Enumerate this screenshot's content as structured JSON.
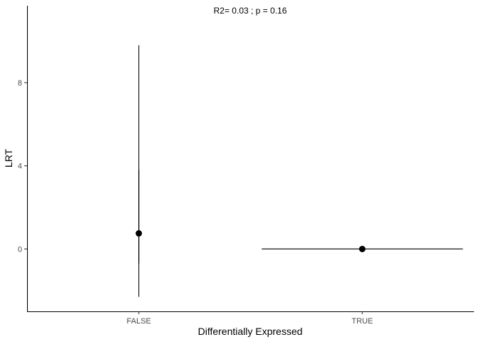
{
  "chart_data": {
    "type": "scatter",
    "xlabel": "Differentially Expressed",
    "ylabel": "LRT",
    "annotation": "R2= 0.03 ; p = 0.16",
    "categories": [
      "FALSE",
      "TRUE"
    ],
    "ylim": [
      -3.0,
      11.7
    ],
    "yticks": [
      0,
      4,
      8
    ],
    "grid": false,
    "points": [
      {
        "category": "FALSE",
        "y": 0.75
      },
      {
        "category": "TRUE",
        "y": 0.0
      }
    ],
    "vertical_ranges": [
      {
        "category": "FALSE",
        "ymin": -2.3,
        "ymax": 9.8
      },
      {
        "category": "FALSE",
        "ymin": -0.7,
        "ymax": 3.8
      }
    ],
    "horizontal_ranges": [
      {
        "category": "TRUE",
        "y": 0.0,
        "xmin_offset": -0.45,
        "xmax_offset": 0.45
      }
    ],
    "colors": {
      "points": "#000000",
      "lines": "#000000",
      "axis": "#000000"
    }
  }
}
